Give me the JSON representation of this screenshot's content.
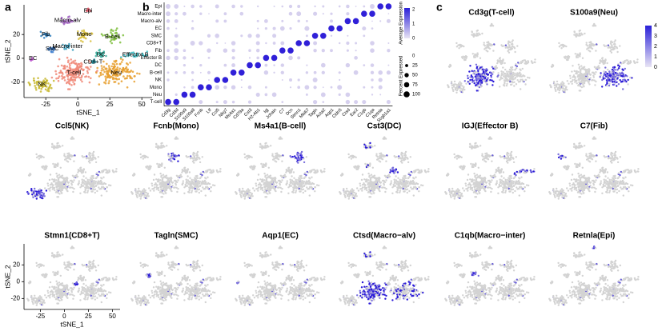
{
  "panels": {
    "a": "a",
    "b": "b",
    "c": "c"
  },
  "tsne": {
    "xlabel": "tSNE_1",
    "ylabel": "tSNE_2",
    "xlim": [
      -42,
      58
    ],
    "ylim": [
      -33,
      45
    ],
    "xticks": [
      -25,
      0,
      25,
      50
    ],
    "yticks": [
      -20,
      0,
      20
    ],
    "clusters": [
      {
        "name": "T-cell",
        "color": "#f08878",
        "cx": -3,
        "cy": -12,
        "rx": 13,
        "ry": 10,
        "n": 170
      },
      {
        "name": "Neu",
        "color": "#e8a030",
        "cx": 30,
        "cy": -12,
        "rx": 13,
        "ry": 10,
        "n": 160
      },
      {
        "name": "NK",
        "color": "#c8b830",
        "cx": -28,
        "cy": -22,
        "rx": 8,
        "ry": 6,
        "n": 60
      },
      {
        "name": "Mono",
        "color": "#d8c040",
        "cx": 5,
        "cy": 20,
        "rx": 6,
        "ry": 5,
        "n": 35
      },
      {
        "name": "B-cell",
        "color": "#80c040",
        "cx": 27,
        "cy": 18,
        "rx": 6,
        "ry": 6,
        "n": 40
      },
      {
        "name": "DC",
        "color": "#40b0a0",
        "cx": 18,
        "cy": 3,
        "rx": 5,
        "ry": 4,
        "n": 25
      },
      {
        "name": "Effector B",
        "color": "#40c0c8",
        "cx": 45,
        "cy": 3,
        "rx": 8,
        "ry": 2.5,
        "n": 25
      },
      {
        "name": "Epi",
        "color": "#e05060",
        "cx": 8,
        "cy": 40,
        "rx": 2,
        "ry": 2,
        "n": 6
      },
      {
        "name": "Macro-alv",
        "color": "#a060c0",
        "cx": -8,
        "cy": 32,
        "rx": 6,
        "ry": 3,
        "n": 20
      },
      {
        "name": "Macro-inter",
        "color": "#40a0c0",
        "cx": -8,
        "cy": 10,
        "rx": 4,
        "ry": 3,
        "n": 15
      },
      {
        "name": "SMC",
        "color": "#4080d0",
        "cx": -20,
        "cy": 8,
        "rx": 4,
        "ry": 3,
        "n": 15
      },
      {
        "name": "EC",
        "color": "#c060d0",
        "cx": -35,
        "cy": 0,
        "rx": 2,
        "ry": 2,
        "n": 6
      },
      {
        "name": "CD8+T",
        "color": "#30a0b0",
        "cx": 12,
        "cy": -3,
        "rx": 3,
        "ry": 2,
        "n": 10
      },
      {
        "name": "Fib",
        "color": "#3080c0",
        "cx": -25,
        "cy": 20,
        "rx": 4,
        "ry": 3,
        "n": 15
      }
    ]
  },
  "dotplot": {
    "rows": [
      "Epi",
      "Macro-inter",
      "Macro-alv",
      "EC",
      "SMC",
      "CD8+T",
      "Fib",
      "Effector B",
      "DC",
      "B-cell",
      "NK",
      "Mono",
      "Neu",
      "T-cell"
    ],
    "genes": [
      "Cd3g",
      "Cd3d",
      "S100a9",
      "S100a8",
      "Fcnb",
      "Ltf",
      "Ccl5",
      "Nkg7",
      "Ms4a1",
      "Cd79a",
      "Cst3",
      "H2-Ab1",
      "Igj",
      "Jchain",
      "C7",
      "Dcn",
      "Stmn1",
      "Mki67",
      "Tagln",
      "Acta2",
      "Aqp1",
      "Cldn5",
      "Ctsd",
      "Ear2",
      "C1qb",
      "C1qa",
      "Retnla",
      "Scgb1a1"
    ],
    "legend_color_title": "Average Expression",
    "color_ticks": [
      0,
      1,
      2
    ],
    "legend_size_title": "Percent Expressed",
    "size_ticks": [
      0,
      25,
      50,
      75,
      100
    ]
  },
  "features": {
    "color_ticks": [
      0,
      1,
      2,
      3,
      4
    ],
    "plots": [
      {
        "title": "Cd3g(T-cell)",
        "clusters": [
          "T-cell"
        ]
      },
      {
        "title": "S100a9(Neu)",
        "clusters": [
          "Neu"
        ]
      },
      {
        "title": "Ccl5(NK)",
        "clusters": [
          "NK"
        ]
      },
      {
        "title": "Fcnb(Mono)",
        "clusters": [
          "Mono"
        ]
      },
      {
        "title": "Ms4a1(B-cell)",
        "clusters": [
          "B-cell"
        ]
      },
      {
        "title": "Cst3(DC)",
        "clusters": [
          "DC",
          "Macro-alv",
          "Macro-inter"
        ]
      },
      {
        "title": "IGJ(Effector B)",
        "clusters": [
          "Effector B"
        ]
      },
      {
        "title": "C7(Fib)",
        "clusters": [
          "Fib"
        ]
      },
      {
        "title": "Stmn1(CD8+T)",
        "clusters": [
          "CD8+T"
        ]
      },
      {
        "title": "Tagln(SMC)",
        "clusters": [
          "SMC"
        ]
      },
      {
        "title": "Aqp1(EC)",
        "clusters": [
          "EC"
        ]
      },
      {
        "title": "Ctsd(Macro−alv)",
        "clusters": [
          "Macro-alv",
          "T-cell",
          "Neu"
        ]
      },
      {
        "title": "C1qb(Macro−inter)",
        "clusters": [
          "Macro-inter"
        ]
      },
      {
        "title": "Retnla(Epi)",
        "clusters": [
          "Epi"
        ]
      }
    ]
  }
}
